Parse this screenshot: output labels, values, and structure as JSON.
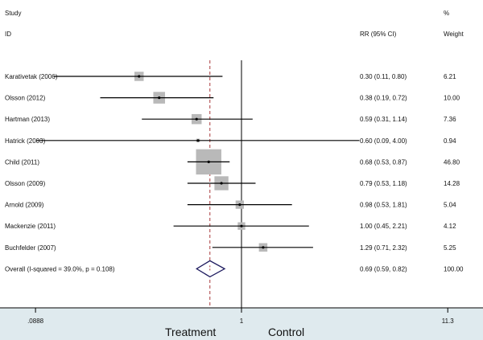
{
  "chart_data": {
    "type": "forest",
    "x_scale": "log",
    "headers": {
      "study_top": "Study",
      "study": "ID",
      "effect": "RR (95% CI)",
      "weight_top": "%",
      "weight": "Weight"
    },
    "studies": [
      {
        "id": "Karativetak (2006)",
        "rr": 0.3,
        "lo": 0.11,
        "hi": 0.8,
        "ci_text": "0.30 (0.11, 0.80)",
        "weight": 6.21,
        "weight_text": "6.21"
      },
      {
        "id": "Olsson (2012)",
        "rr": 0.38,
        "lo": 0.19,
        "hi": 0.72,
        "ci_text": "0.38 (0.19, 0.72)",
        "weight": 10.0,
        "weight_text": "10.00"
      },
      {
        "id": "Hartman (2013)",
        "rr": 0.59,
        "lo": 0.31,
        "hi": 1.14,
        "ci_text": "0.59 (0.31, 1.14)",
        "weight": 7.36,
        "weight_text": "7.36"
      },
      {
        "id": "Hatrick  (2003)",
        "rr": 0.6,
        "lo": 0.09,
        "hi": 4.0,
        "ci_text": "0.60 (0.09, 4.00)",
        "weight": 0.94,
        "weight_text": "0.94"
      },
      {
        "id": "Child (2011)",
        "rr": 0.68,
        "lo": 0.53,
        "hi": 0.87,
        "ci_text": "0.68 (0.53, 0.87)",
        "weight": 46.8,
        "weight_text": "46.80"
      },
      {
        "id": "Olsson (2009)",
        "rr": 0.79,
        "lo": 0.53,
        "hi": 1.18,
        "ci_text": "0.79 (0.53, 1.18)",
        "weight": 14.28,
        "weight_text": "14.28"
      },
      {
        "id": "Arnold (2009)",
        "rr": 0.98,
        "lo": 0.53,
        "hi": 1.81,
        "ci_text": "0.98 (0.53, 1.81)",
        "weight": 5.04,
        "weight_text": "5.04"
      },
      {
        "id": "Mackenzie (2011)",
        "rr": 1.0,
        "lo": 0.45,
        "hi": 2.21,
        "ci_text": "1.00 (0.45, 2.21)",
        "weight": 4.12,
        "weight_text": "4.12"
      },
      {
        "id": "Buchfelder (2007)",
        "rr": 1.29,
        "lo": 0.71,
        "hi": 2.32,
        "ci_text": "1.29 (0.71, 2.32)",
        "weight": 5.25,
        "weight_text": "5.25"
      }
    ],
    "overall": {
      "label": "Overall  (I-squared = 39.0%, p = 0.108)",
      "rr": 0.69,
      "lo": 0.59,
      "hi": 0.82,
      "ci_text": "0.69 (0.59, 0.82)",
      "weight_text": "100.00"
    },
    "x_ticks": [
      {
        "value": 0.0888,
        "label": ".0888"
      },
      {
        "value": 1,
        "label": "1"
      },
      {
        "value": 11.3,
        "label": "11.3"
      }
    ],
    "xlim": [
      0.0585,
      17.1
    ],
    "null_value": 1,
    "axis_labels": {
      "left": "Treatment",
      "right": "Control"
    },
    "colors": {
      "box": "#b9b9b9",
      "line": "#000000",
      "diamond": "#1d1a5e",
      "dashed": "#a8383b",
      "band": "#dfeaee"
    }
  }
}
